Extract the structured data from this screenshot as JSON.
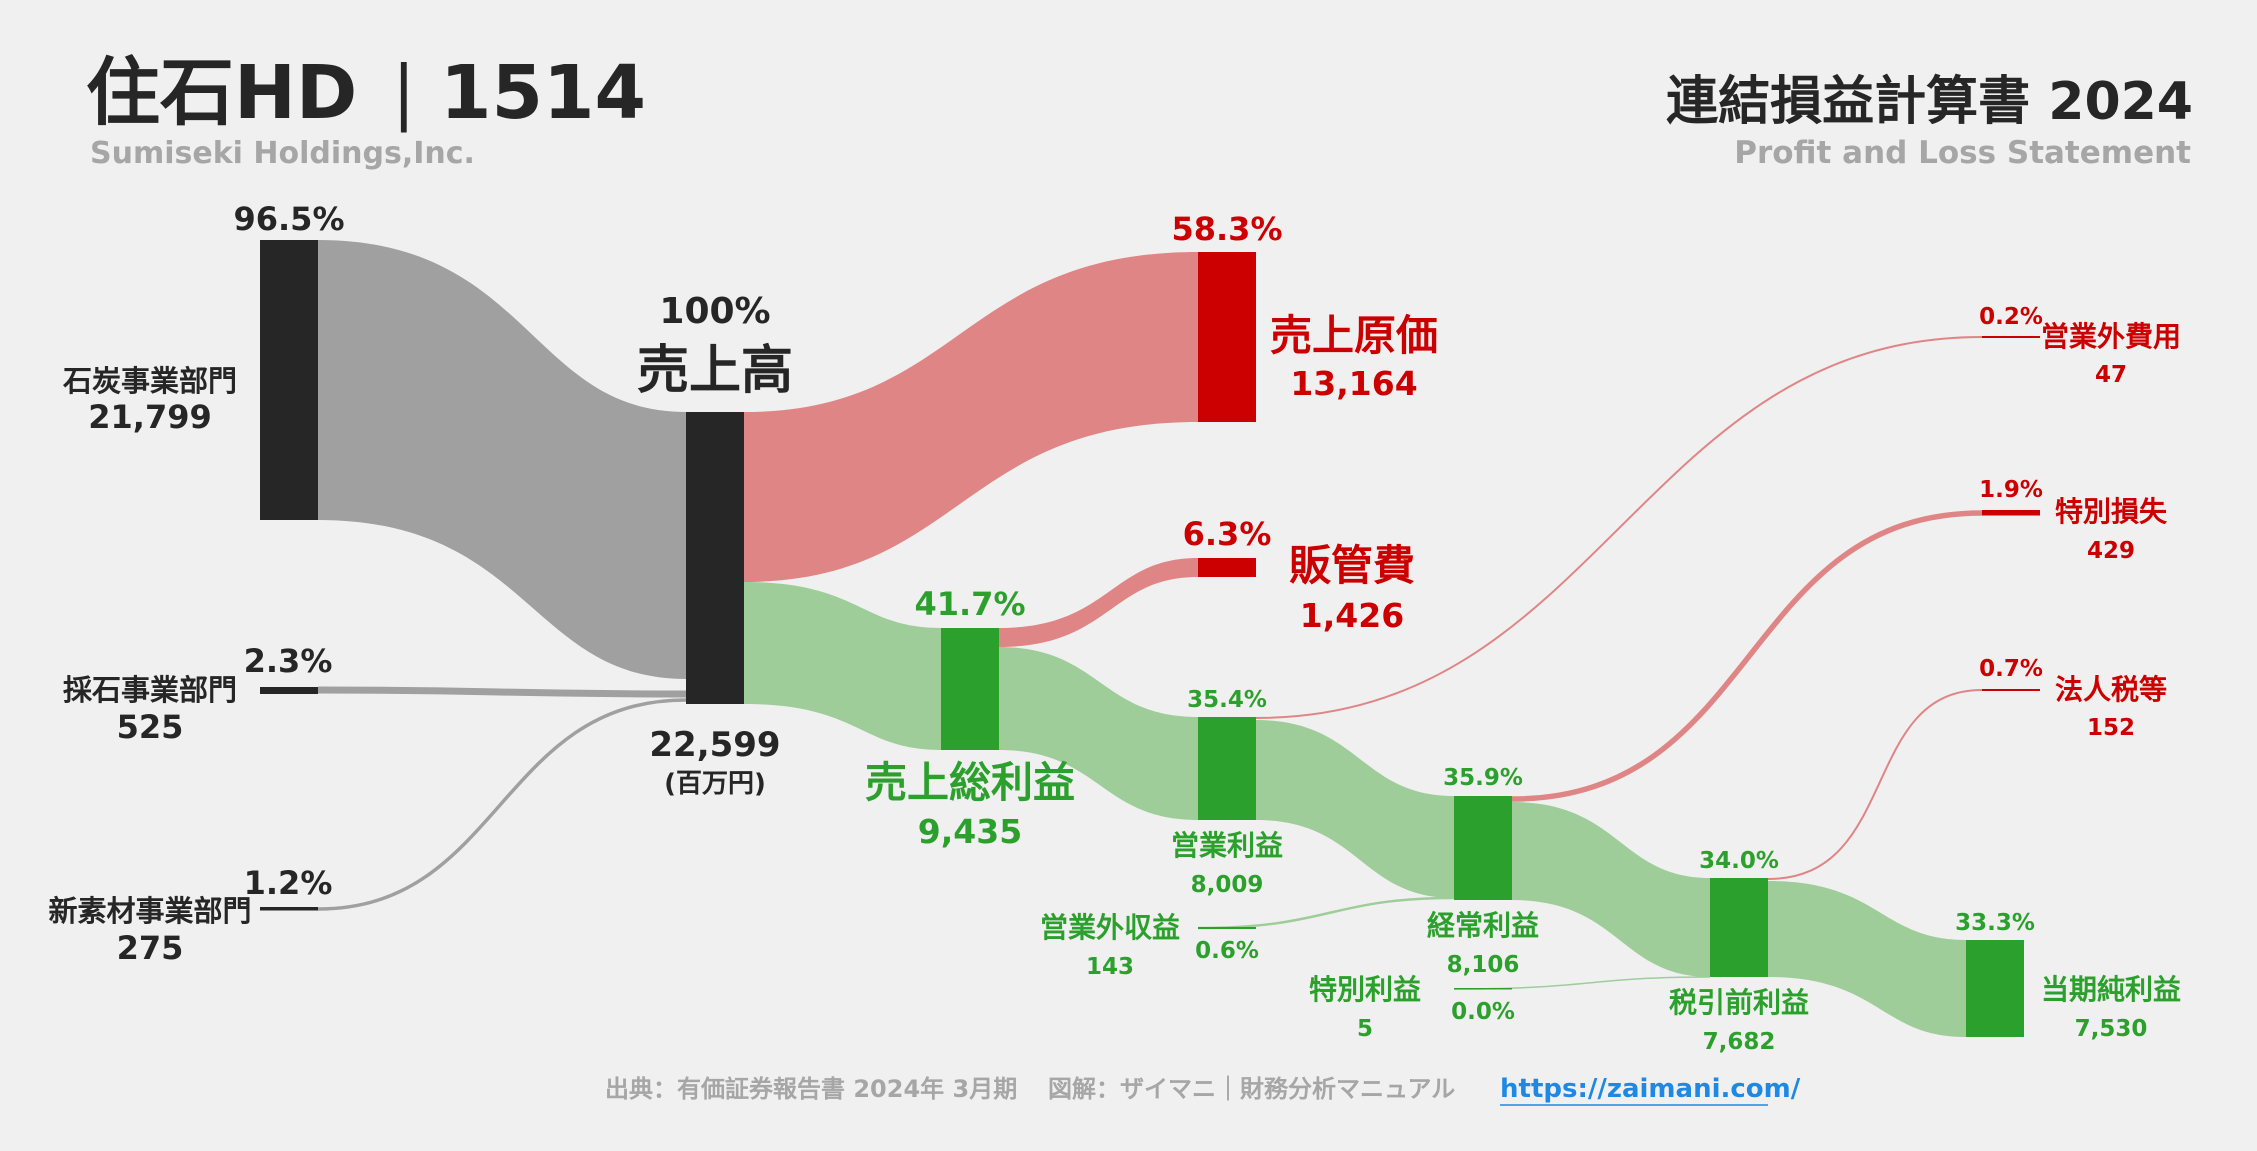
{
  "header": {
    "company": "住石HD",
    "separator": "|",
    "code": "1514",
    "company_en": "Sumiseki Holdings,Inc.",
    "title": "連結損益計算書 2024",
    "subtitle": "Profit and Loss Statement"
  },
  "footer": {
    "source": "出典：有価証券報告書 2024年 3月期",
    "credit": "図解：ザイマニ｜財務分析マニュアル",
    "url": "https://zaimani.com/"
  },
  "colors": {
    "node_dark": "#262626",
    "node_red": "#cc0000",
    "node_green": "#2ca02c",
    "flow_gray": "#a0a0a0",
    "flow_red": "#e08585",
    "flow_green": "#9ecd9a",
    "text_dark": "#262626",
    "text_red": "#cc0000",
    "text_green": "#2ca02c",
    "link_blue": "#1e88e5"
  },
  "chart_data": {
    "type": "sankey",
    "unit": "(百万円)",
    "nodes": [
      {
        "id": "coal",
        "label": "石炭事業部門",
        "value": 21799,
        "value_text": "21,799",
        "pct": "96.5%"
      },
      {
        "id": "stone",
        "label": "採石事業部門",
        "value": 525,
        "value_text": "525",
        "pct": "2.3%"
      },
      {
        "id": "material",
        "label": "新素材事業部門",
        "value": 275,
        "value_text": "275",
        "pct": "1.2%"
      },
      {
        "id": "revenue",
        "label": "売上高",
        "value": 22599,
        "value_text": "22,599",
        "pct": "100%"
      },
      {
        "id": "cogs",
        "label": "売上原価",
        "value": 13164,
        "value_text": "13,164",
        "pct": "58.3%"
      },
      {
        "id": "gross",
        "label": "売上総利益",
        "value": 9435,
        "value_text": "9,435",
        "pct": "41.7%"
      },
      {
        "id": "sga",
        "label": "販管費",
        "value": 1426,
        "value_text": "1,426",
        "pct": "6.3%"
      },
      {
        "id": "op",
        "label": "営業利益",
        "value": 8009,
        "value_text": "8,009",
        "pct": "35.4%"
      },
      {
        "id": "nonop_inc",
        "label": "営業外収益",
        "value": 143,
        "value_text": "143",
        "pct": "0.6%"
      },
      {
        "id": "nonop_exp",
        "label": "営業外費用",
        "value": 47,
        "value_text": "47",
        "pct": "0.2%"
      },
      {
        "id": "ordinary",
        "label": "経常利益",
        "value": 8106,
        "value_text": "8,106",
        "pct": "35.9%"
      },
      {
        "id": "sp_gain",
        "label": "特別利益",
        "value": 5,
        "value_text": "5",
        "pct": "0.0%"
      },
      {
        "id": "sp_loss",
        "label": "特別損失",
        "value": 429,
        "value_text": "429",
        "pct": "1.9%"
      },
      {
        "id": "pretax",
        "label": "税引前利益",
        "value": 7682,
        "value_text": "7,682",
        "pct": "34.0%"
      },
      {
        "id": "tax",
        "label": "法人税等",
        "value": 152,
        "value_text": "152",
        "pct": "0.7%"
      },
      {
        "id": "net",
        "label": "当期純利益",
        "value": 7530,
        "value_text": "7,530",
        "pct": "33.3%"
      }
    ],
    "links": [
      {
        "source": "coal",
        "target": "revenue",
        "value": 21799
      },
      {
        "source": "stone",
        "target": "revenue",
        "value": 525
      },
      {
        "source": "material",
        "target": "revenue",
        "value": 275
      },
      {
        "source": "revenue",
        "target": "cogs",
        "value": 13164
      },
      {
        "source": "revenue",
        "target": "gross",
        "value": 9435
      },
      {
        "source": "gross",
        "target": "sga",
        "value": 1426
      },
      {
        "source": "gross",
        "target": "op",
        "value": 8009
      },
      {
        "source": "op",
        "target": "nonop_exp",
        "value": 47
      },
      {
        "source": "op",
        "target": "ordinary",
        "value": 7962
      },
      {
        "source": "nonop_inc",
        "target": "ordinary",
        "value": 143
      },
      {
        "source": "ordinary",
        "target": "sp_loss",
        "value": 429
      },
      {
        "source": "ordinary",
        "target": "pretax",
        "value": 7677
      },
      {
        "source": "sp_gain",
        "target": "pretax",
        "value": 5
      },
      {
        "source": "pretax",
        "target": "tax",
        "value": 152
      },
      {
        "source": "pretax",
        "target": "net",
        "value": 7530
      }
    ]
  }
}
